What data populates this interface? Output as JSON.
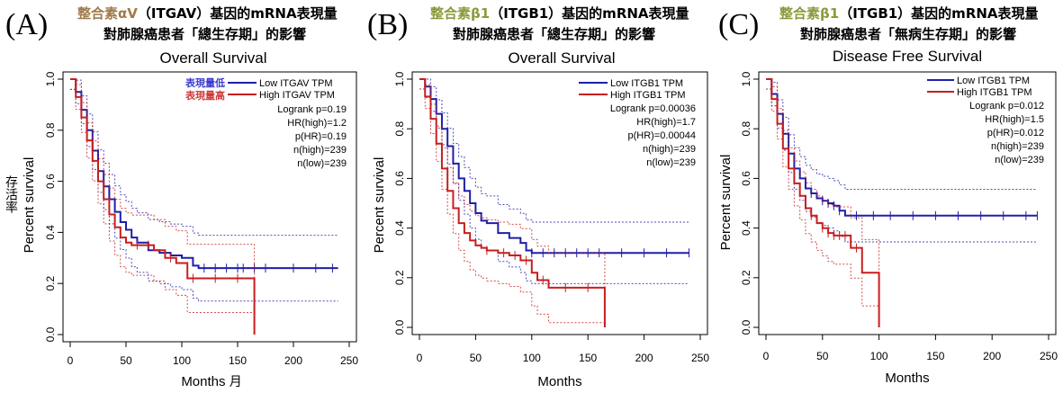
{
  "chart_data": [
    {
      "type": "line",
      "panel_label": "(A)",
      "gene_prefix": "整合素αV",
      "gene_suffix": "（ITGAV）基因的mRNA表現量",
      "prefix_color": "#a07a4a",
      "subtitle": "對肺腺癌患者「總生存期」的影響",
      "title": "Overall Survival",
      "xlabel": "Months",
      "xlabel_cjk": "月",
      "ylabel": "Percent survival",
      "ylabel_cjk": "存活率",
      "xlim": [
        0,
        250
      ],
      "ylim": [
        0,
        1
      ],
      "x_ticks": [
        "0",
        "50",
        "100",
        "150",
        "200",
        "250"
      ],
      "y_ticks": [
        "0.0",
        "0.2",
        "0.4",
        "0.6",
        "0.8",
        "1.0"
      ],
      "legend": {
        "low_label": "Low ITGAV TPM",
        "high_label": "High ITGAV TPM",
        "low_cjk": "表現量低",
        "high_cjk": "表現量高"
      },
      "stats": [
        "Logrank p=0.19",
        "HR(high)=1.2",
        "p(HR)=0.19",
        "n(high)=239",
        "n(low)=239"
      ],
      "series": [
        {
          "name": "Low ITGAV TPM",
          "color": "#1f1fa8",
          "x": [
            0,
            5,
            10,
            15,
            20,
            25,
            30,
            35,
            40,
            45,
            50,
            55,
            60,
            70,
            80,
            90,
            100,
            110,
            115,
            240
          ],
          "y": [
            1.0,
            0.95,
            0.88,
            0.8,
            0.72,
            0.64,
            0.58,
            0.53,
            0.48,
            0.44,
            0.41,
            0.38,
            0.36,
            0.33,
            0.32,
            0.31,
            0.3,
            0.27,
            0.26,
            0.26
          ],
          "censor_x": [
            120,
            130,
            140,
            150,
            155,
            165,
            175,
            200,
            220,
            235
          ]
        },
        {
          "name": "High ITGAV TPM",
          "color": "#c81e1e",
          "x": [
            0,
            5,
            10,
            15,
            20,
            25,
            30,
            35,
            40,
            45,
            50,
            55,
            65,
            75,
            85,
            95,
            105,
            120,
            135,
            150,
            165
          ],
          "y": [
            1.0,
            0.93,
            0.85,
            0.76,
            0.68,
            0.6,
            0.53,
            0.47,
            0.42,
            0.38,
            0.36,
            0.35,
            0.35,
            0.33,
            0.3,
            0.28,
            0.22,
            0.22,
            0.22,
            0.22,
            0.0
          ],
          "censor_x": [
            60,
            70,
            90,
            110,
            130,
            150
          ]
        }
      ]
    },
    {
      "type": "line",
      "panel_label": "(B)",
      "gene_prefix": "整合素β1",
      "gene_suffix": "（ITGB1）基因的mRNA表現量",
      "prefix_color": "#8a9a3a",
      "subtitle": "對肺腺癌患者「總生存期」的影響",
      "title": "Overall Survival",
      "xlabel": "Months",
      "ylabel": "Percent survival",
      "xlim": [
        0,
        250
      ],
      "ylim": [
        0,
        1
      ],
      "x_ticks": [
        "0",
        "50",
        "100",
        "150",
        "200",
        "250"
      ],
      "y_ticks": [
        "0.0",
        "0.2",
        "0.4",
        "0.6",
        "0.8",
        "1.0"
      ],
      "legend": {
        "low_label": "Low ITGB1 TPM",
        "high_label": "High ITGB1 TPM"
      },
      "stats": [
        "Logrank p=0.00036",
        "HR(high)=1.7",
        "p(HR)=0.00044",
        "n(high)=239",
        "n(low)=239"
      ],
      "series": [
        {
          "name": "Low ITGB1 TPM",
          "color": "#1f1fa8",
          "x": [
            0,
            5,
            10,
            15,
            20,
            25,
            30,
            35,
            40,
            45,
            50,
            55,
            60,
            70,
            80,
            90,
            95,
            100,
            240
          ],
          "y": [
            1.0,
            0.97,
            0.92,
            0.86,
            0.8,
            0.73,
            0.66,
            0.6,
            0.55,
            0.5,
            0.46,
            0.43,
            0.42,
            0.38,
            0.36,
            0.34,
            0.31,
            0.3,
            0.3
          ],
          "censor_x": [
            100,
            110,
            120,
            130,
            140,
            150,
            160,
            180,
            200,
            220,
            240
          ]
        },
        {
          "name": "High ITGB1 TPM",
          "color": "#c81e1e",
          "x": [
            0,
            5,
            10,
            15,
            20,
            25,
            30,
            35,
            40,
            45,
            50,
            55,
            60,
            70,
            80,
            90,
            100,
            105,
            115,
            125,
            165
          ],
          "y": [
            1.0,
            0.93,
            0.84,
            0.74,
            0.64,
            0.55,
            0.48,
            0.42,
            0.38,
            0.35,
            0.33,
            0.32,
            0.31,
            0.3,
            0.29,
            0.27,
            0.22,
            0.19,
            0.16,
            0.16,
            0.0
          ],
          "censor_x": [
            60,
            75,
            85,
            95,
            110,
            130,
            150
          ]
        }
      ]
    },
    {
      "type": "line",
      "panel_label": "(C)",
      "gene_prefix": "整合素β1",
      "gene_suffix": "（ITGB1）基因的mRNA表現量",
      "prefix_color": "#8a9a3a",
      "subtitle": "對肺腺癌患者「無病生存期」的影響",
      "title": "Disease Free Survival",
      "xlabel": "Months",
      "ylabel": "Percent survival",
      "xlim": [
        0,
        250
      ],
      "ylim": [
        0,
        1
      ],
      "x_ticks": [
        "0",
        "50",
        "100",
        "150",
        "200",
        "250"
      ],
      "y_ticks": [
        "0.0",
        "0.2",
        "0.4",
        "0.6",
        "0.8",
        "1.0"
      ],
      "legend": {
        "low_label": "Low ITGB1 TPM",
        "high_label": "High ITGB1 TPM"
      },
      "stats": [
        "Logrank p=0.012",
        "HR(high)=1.5",
        "p(HR)=0.012",
        "n(high)=239",
        "n(low)=239"
      ],
      "series": [
        {
          "name": "Low ITGB1 TPM",
          "color": "#1f1fa8",
          "x": [
            0,
            5,
            10,
            15,
            20,
            25,
            30,
            35,
            40,
            45,
            50,
            55,
            60,
            65,
            70,
            240
          ],
          "y": [
            1.0,
            0.94,
            0.86,
            0.78,
            0.7,
            0.64,
            0.6,
            0.56,
            0.54,
            0.52,
            0.51,
            0.5,
            0.49,
            0.47,
            0.45,
            0.45
          ],
          "censor_x": [
            40,
            50,
            55,
            60,
            65,
            80,
            95,
            110,
            130,
            150,
            170,
            190,
            210,
            230,
            240
          ]
        },
        {
          "name": "High ITGB1 TPM",
          "color": "#c81e1e",
          "x": [
            0,
            5,
            10,
            15,
            20,
            25,
            30,
            35,
            40,
            45,
            50,
            55,
            60,
            70,
            75,
            85,
            90,
            100
          ],
          "y": [
            1.0,
            0.92,
            0.82,
            0.72,
            0.64,
            0.58,
            0.53,
            0.48,
            0.45,
            0.42,
            0.4,
            0.38,
            0.37,
            0.37,
            0.32,
            0.22,
            0.22,
            0.0
          ],
          "censor_x": [
            40,
            50,
            55,
            60,
            65,
            70,
            80
          ]
        }
      ]
    }
  ]
}
